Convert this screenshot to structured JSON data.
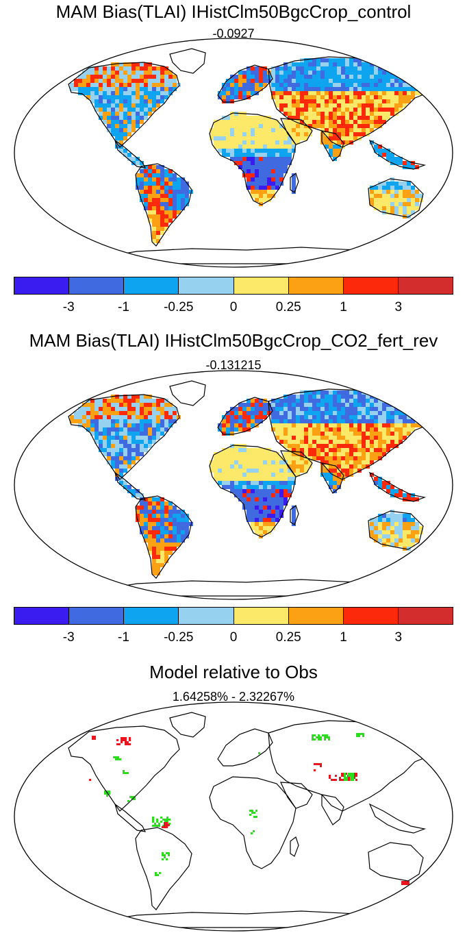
{
  "panels": [
    {
      "title": "MAM Bias(TLAI) IHistClm50BgcCrop_control",
      "subtitle": "-0.0927",
      "style": "bias"
    },
    {
      "title": "MAM Bias(TLAI) IHistClm50BgcCrop_CO2_fert_rev",
      "subtitle": "-0.131215",
      "style": "bias2"
    },
    {
      "title": "Model relative to Obs",
      "subtitle": "1.64258% - 2.32267%",
      "style": "relative"
    }
  ],
  "colorbar": {
    "colors": [
      "#3a1cf0",
      "#3f6ae0",
      "#0fa4f0",
      "#96d2ef",
      "#fce96a",
      "#fca014",
      "#fc2a0a",
      "#d42d2d"
    ],
    "labels": [
      "-3",
      "-1",
      "-0.25",
      "0",
      "0.25",
      "1",
      "3"
    ]
  },
  "relative_colors": {
    "higher": "#e8141e",
    "lower": "#2ddc1e"
  }
}
